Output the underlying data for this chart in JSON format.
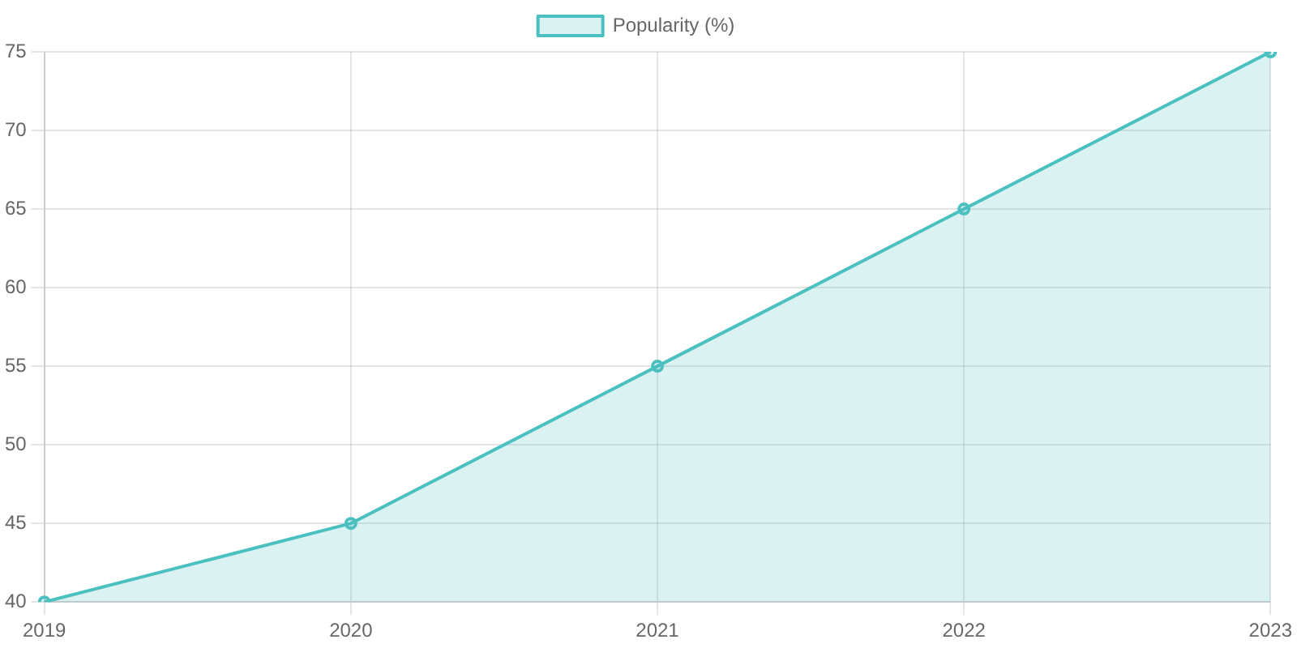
{
  "chart_data": {
    "type": "area",
    "categories": [
      "2019",
      "2020",
      "2021",
      "2022",
      "2023"
    ],
    "series": [
      {
        "name": "Popularity (%)",
        "color": "#4bc0c0",
        "values": [
          40,
          45,
          55,
          65,
          75
        ]
      }
    ],
    "ylim": [
      40,
      75
    ],
    "yticks": [
      40,
      45,
      50,
      55,
      60,
      65,
      70,
      75
    ],
    "grid": true,
    "legend": "top",
    "marker": "circle",
    "line_style": "solid"
  }
}
